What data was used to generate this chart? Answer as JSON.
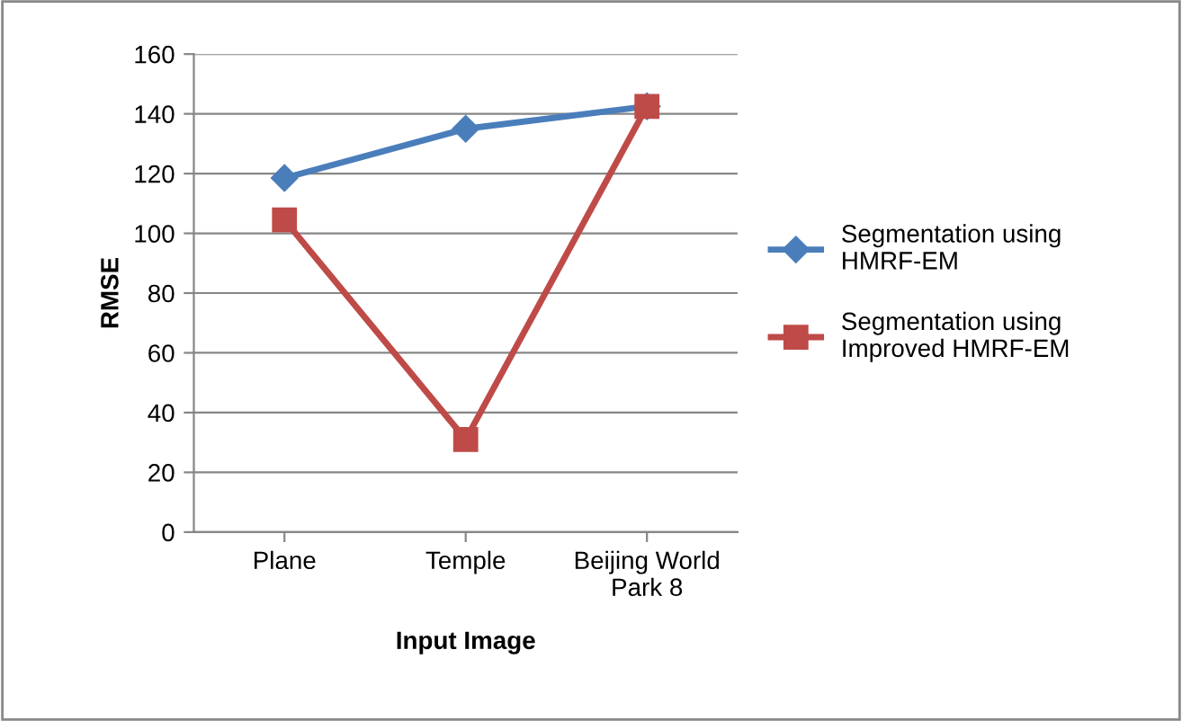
{
  "chart_data": {
    "type": "line",
    "xlabel": "Input Image",
    "ylabel": "RMSE",
    "categories": [
      "Plane",
      "Temple",
      "Beijing World Park 8"
    ],
    "series": [
      {
        "name": "Segmentation using HMRF-EM",
        "color": "#4a7ebb",
        "values": [
          118.5,
          135,
          142.5
        ],
        "marker": "diamond"
      },
      {
        "name": "Segmentation using Improved HMRF-EM",
        "color": "#be4b48",
        "values": [
          104.5,
          31,
          142.5
        ],
        "marker": "square"
      }
    ],
    "ylim": [
      0,
      160
    ],
    "yticks": [
      0,
      20,
      40,
      60,
      80,
      100,
      120,
      140,
      160
    ],
    "grid": "y",
    "legend": "right",
    "line_style": "solid"
  }
}
